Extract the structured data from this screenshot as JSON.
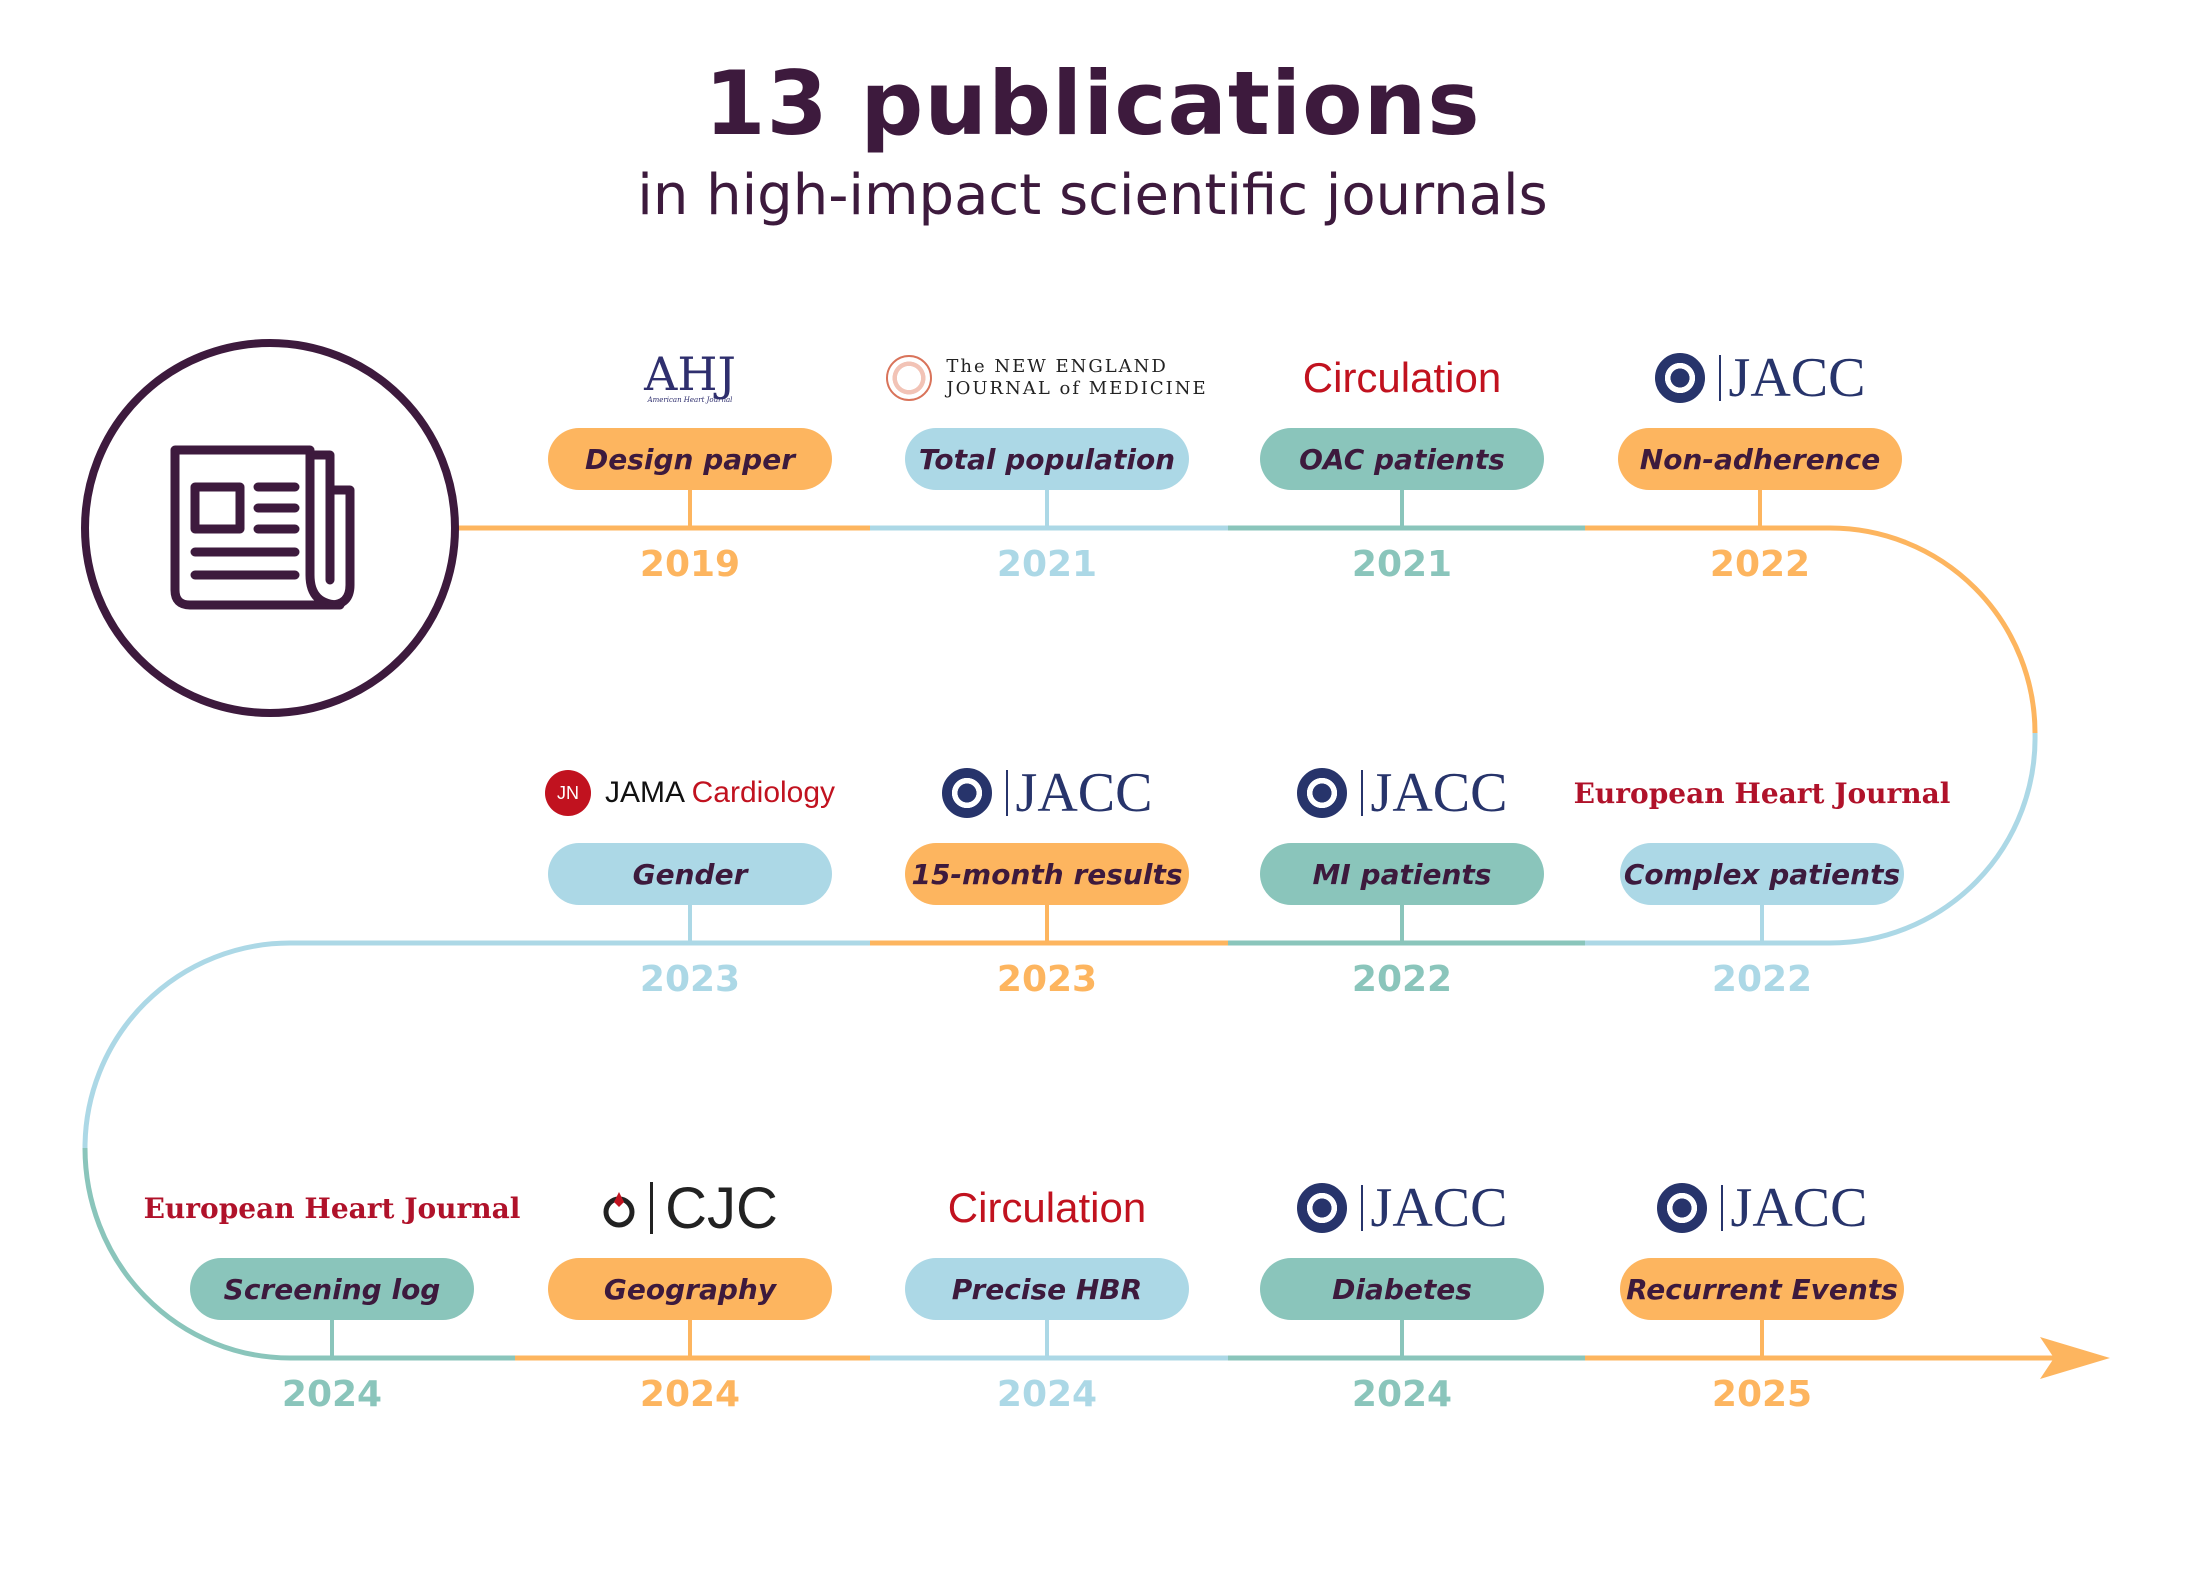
{
  "header": {
    "title": "13 publications",
    "subtitle": "in high-impact scientific journals"
  },
  "icon": "newspaper-icon",
  "colors": {
    "dark": "#3d1a3d",
    "orange": "#fdb55f",
    "blue": "#acd8e6",
    "teal": "#8ac5bb",
    "red": "#c1121f"
  },
  "publications": [
    {
      "journal": "AHJ",
      "journal_sub": "American Heart Journal",
      "topic": "Design paper",
      "year": "2019",
      "color": "orange"
    },
    {
      "journal": "The NEW ENGLAND",
      "journal_sub": "JOURNAL of MEDICINE",
      "topic": "Total population",
      "year": "2021",
      "color": "blue"
    },
    {
      "journal": "Circulation",
      "topic": "OAC patients",
      "year": "2021",
      "color": "teal"
    },
    {
      "journal": "JACC",
      "topic": "Non-adherence",
      "year": "2022",
      "color": "orange"
    },
    {
      "journal": "European Heart Journal",
      "topic": "Complex patients",
      "year": "2022",
      "color": "blue"
    },
    {
      "journal": "JACC",
      "topic": "MI patients",
      "year": "2022",
      "color": "teal"
    },
    {
      "journal": "JACC",
      "topic": "15-month results",
      "year": "2023",
      "color": "orange"
    },
    {
      "journal": "JAMA",
      "journal_sub": "Cardiology",
      "jn": "JN",
      "topic": "Gender",
      "year": "2023",
      "color": "blue"
    },
    {
      "journal": "European Heart Journal",
      "topic": "Screening log",
      "year": "2024",
      "color": "teal"
    },
    {
      "journal": "CJC",
      "topic": "Geography",
      "year": "2024",
      "color": "orange"
    },
    {
      "journal": "Circulation",
      "topic": "Precise HBR",
      "year": "2024",
      "color": "blue"
    },
    {
      "journal": "JACC",
      "topic": "Diabetes",
      "year": "2024",
      "color": "teal"
    },
    {
      "journal": "JACC",
      "topic": "Recurrent Events",
      "year": "2025",
      "color": "orange"
    }
  ]
}
